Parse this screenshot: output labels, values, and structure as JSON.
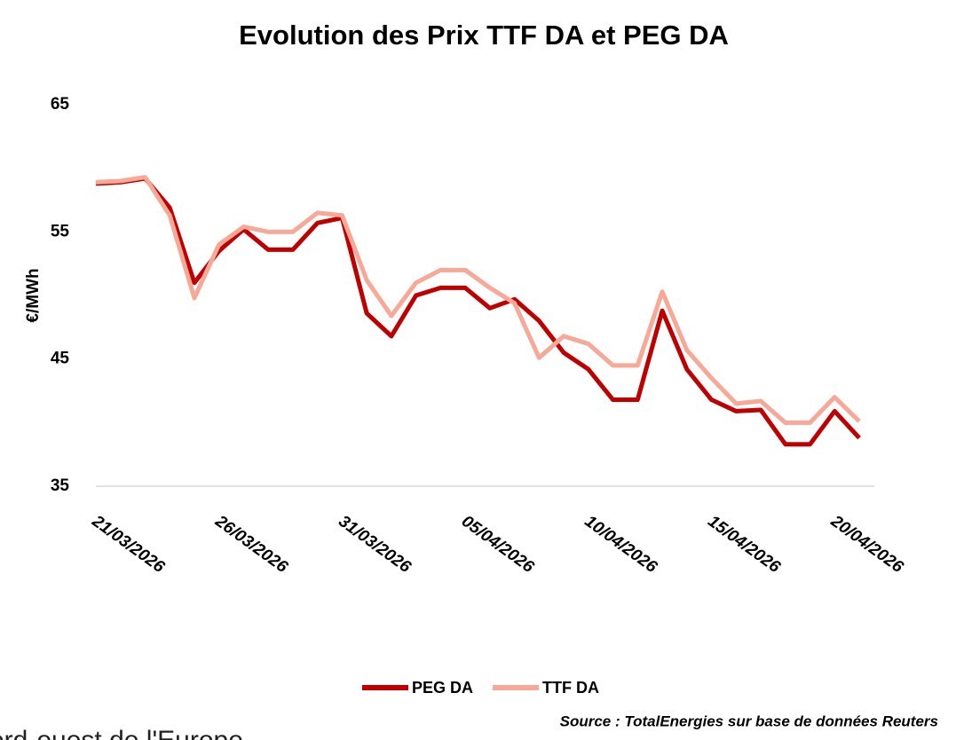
{
  "chart_data": {
    "type": "line",
    "title": "Evolution des Prix TTF DA et PEG DA",
    "y_label": "€/MWh",
    "source": "Source : TotalEnergies sur base de données Reuters",
    "footer_text": "ord-ouest de l'Europe",
    "categories": [
      null,
      "21/03/2026",
      null,
      null,
      null,
      null,
      "26/03/2026",
      null,
      null,
      null,
      null,
      "31/03/2026",
      null,
      null,
      null,
      null,
      "05/04/2026",
      null,
      null,
      null,
      null,
      "10/04/2026",
      null,
      null,
      null,
      null,
      "15/04/2026",
      null,
      null,
      null,
      null,
      "20/04/2026"
    ],
    "series": [
      {
        "name": "PEG DA",
        "color": "#c00000",
        "values": [
          58.8,
          58.9,
          59.2,
          56.9,
          51.0,
          53.5,
          55.2,
          53.6,
          53.6,
          55.7,
          56.1,
          48.6,
          46.8,
          50.0,
          50.6,
          50.6,
          49.0,
          49.7,
          48.0,
          45.5,
          44.2,
          41.8,
          41.8,
          48.8,
          44.2,
          41.8,
          40.9,
          41.0,
          38.3,
          38.3,
          40.9,
          38.8
        ]
      },
      {
        "name": "TTF DA",
        "color": "#f8a896",
        "values": [
          58.9,
          59.0,
          59.3,
          56.3,
          49.8,
          54.0,
          55.4,
          55.0,
          55.0,
          56.5,
          56.3,
          51.2,
          48.4,
          51.0,
          52.0,
          52.0,
          50.6,
          49.4,
          45.1,
          46.8,
          46.2,
          44.5,
          44.5,
          50.3,
          45.7,
          43.5,
          41.5,
          41.7,
          40.0,
          40.0,
          42.0,
          40.1
        ]
      }
    ],
    "ylim": [
      35,
      65
    ],
    "yticks": [
      35,
      45,
      55,
      65
    ],
    "grid": false,
    "legend": "bottom"
  }
}
